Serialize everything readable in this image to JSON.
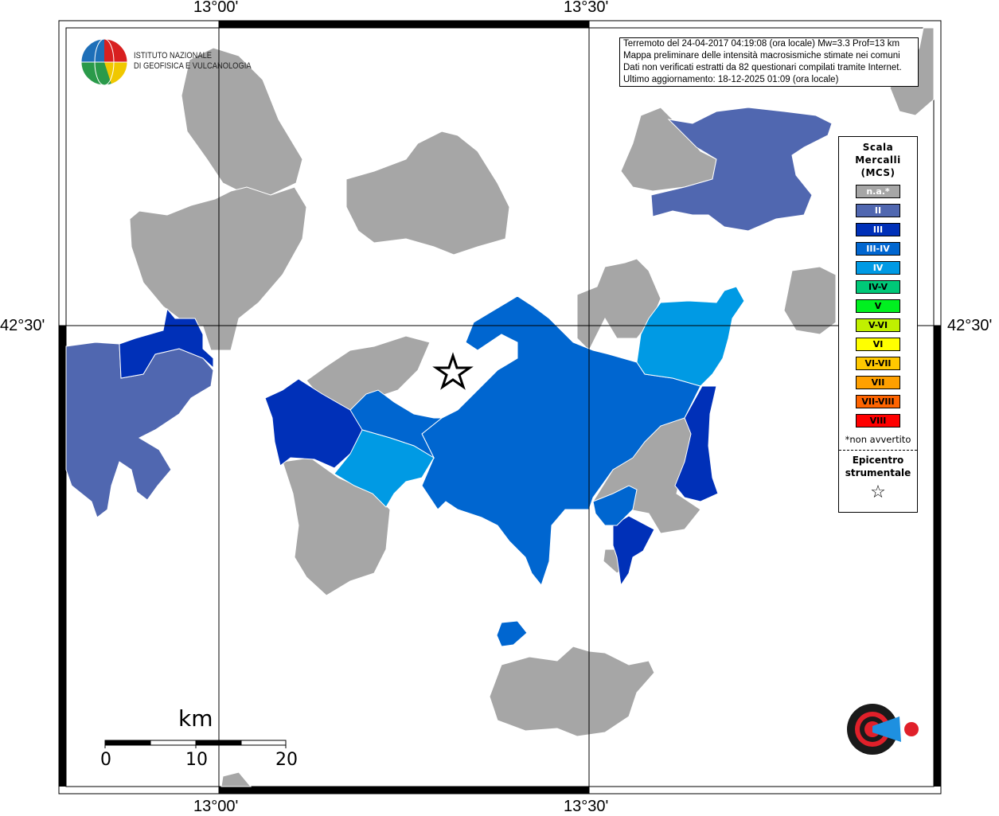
{
  "axes": {
    "lon_labels": [
      "13°00'",
      "13°30'"
    ],
    "lat_label": "42°30'"
  },
  "logo_ingv": {
    "line1": "ISTITUTO NAZIONALE",
    "line2": "DI GEOFISICA E VULCANOLOGIA"
  },
  "info": {
    "line1": "Terremoto del 24-04-2017 04:19:08 (ora locale) Mw=3.3 Prof=13 km",
    "line2": "Mappa preliminare delle intensità macrosismiche stimate nei comuni",
    "line3": "Dati non verificati estratti da 82 questionari compilati tramite Internet.",
    "line4": "Ultimo aggiornamento: 18-12-2025 01:09 (ora locale)"
  },
  "legend": {
    "title1": "Scala",
    "title2": "Mercalli",
    "title3": "(MCS)",
    "items": [
      {
        "label": "n.a.*",
        "color": "#a6a6a6",
        "text": "#ffffff"
      },
      {
        "label": "II",
        "color": "#5067b0",
        "text": "#ffffff"
      },
      {
        "label": "III",
        "color": "#0030b8",
        "text": "#ffffff"
      },
      {
        "label": "III-IV",
        "color": "#0066d0",
        "text": "#ffffff"
      },
      {
        "label": "IV",
        "color": "#009ae4",
        "text": "#ffffff"
      },
      {
        "label": "IV-V",
        "color": "#00c878",
        "text": "#000000"
      },
      {
        "label": "V",
        "color": "#00f020",
        "text": "#000000"
      },
      {
        "label": "V-VI",
        "color": "#c0f000",
        "text": "#000000"
      },
      {
        "label": "VI",
        "color": "#ffff00",
        "text": "#000000"
      },
      {
        "label": "VI-VII",
        "color": "#ffc800",
        "text": "#000000"
      },
      {
        "label": "VII",
        "color": "#ffa000",
        "text": "#000000"
      },
      {
        "label": "VII-VIII",
        "color": "#ff6400",
        "text": "#000000"
      },
      {
        "label": "VIII",
        "color": "#ff0000",
        "text": "#000000"
      }
    ],
    "note": "*non avvertito",
    "epicenter1": "Epicentro",
    "epicenter2": "strumentale",
    "epicenter_symbol": "☆"
  },
  "scale_bar": {
    "unit": "km",
    "ticks": [
      "0",
      "10",
      "20"
    ]
  },
  "logo_hsit": "www.haisentitoilterremoto.it"
}
